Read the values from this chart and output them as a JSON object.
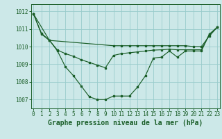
{
  "title": "Graphe pression niveau de la mer (hPa)",
  "bg_color": "#cce8e8",
  "grid_color": "#99cccc",
  "line_color": "#1a5e28",
  "x_ticks": [
    0,
    1,
    2,
    3,
    4,
    5,
    6,
    7,
    8,
    9,
    10,
    11,
    12,
    13,
    14,
    15,
    16,
    17,
    18,
    19,
    20,
    21,
    22,
    23
  ],
  "y_ticks": [
    1007,
    1008,
    1009,
    1010,
    1011,
    1012
  ],
  "ylim": [
    1006.5,
    1012.4
  ],
  "xlim": [
    -0.3,
    23.3
  ],
  "series1_x": [
    0,
    1,
    2,
    3,
    4,
    5,
    6,
    7,
    8,
    9,
    10,
    11,
    12,
    13,
    14,
    15,
    16,
    17,
    18,
    19,
    20,
    21,
    22,
    23
  ],
  "series1_y": [
    1011.85,
    1010.75,
    1010.35,
    1009.8,
    1009.6,
    1009.45,
    1009.25,
    1009.1,
    1008.95,
    1008.8,
    1009.5,
    1009.6,
    1009.65,
    1009.7,
    1009.75,
    1009.8,
    1009.82,
    1009.85,
    1009.82,
    1009.82,
    1009.82,
    1009.82,
    1010.7,
    1011.1
  ],
  "series2_x": [
    0,
    1,
    2,
    3,
    4,
    5,
    6,
    7,
    8,
    9,
    10,
    11,
    12,
    13,
    14,
    15,
    16,
    17,
    18,
    19,
    20,
    21,
    22,
    23
  ],
  "series2_y": [
    1011.85,
    1010.7,
    1010.35,
    1009.75,
    1008.85,
    1008.35,
    1007.75,
    1007.15,
    1007.0,
    1007.0,
    1007.2,
    1007.2,
    1007.2,
    1007.7,
    1008.35,
    1009.35,
    1009.4,
    1009.75,
    1009.4,
    1009.75,
    1009.75,
    1009.75,
    1010.7,
    1011.1
  ],
  "series3_x": [
    0,
    2,
    10,
    11,
    12,
    13,
    14,
    15,
    16,
    17,
    18,
    19,
    20,
    21,
    22,
    23
  ],
  "series3_y": [
    1011.85,
    1010.35,
    1010.05,
    1010.05,
    1010.05,
    1010.05,
    1010.05,
    1010.05,
    1010.05,
    1010.05,
    1010.05,
    1010.05,
    1010.0,
    1010.0,
    1010.6,
    1011.1
  ],
  "tick_fontsize": 5.5,
  "xlabel_fontsize": 7
}
